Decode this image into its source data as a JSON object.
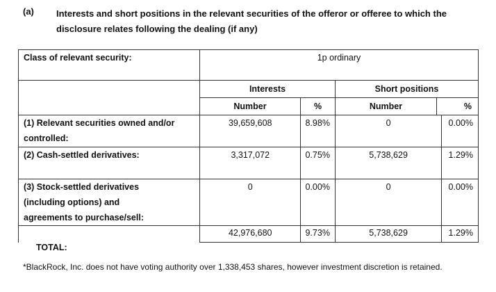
{
  "heading": {
    "label": "(a)",
    "text": "Interests and short positions in the relevant securities of the offeror or offeree to which the disclosure relates following the dealing (if any)"
  },
  "table": {
    "class_label": "Class of relevant security:",
    "class_value": "1p ordinary",
    "interests_header": "Interests",
    "short_header": "Short positions",
    "number_header": "Number",
    "percent_header": "%",
    "rows": [
      {
        "label_line1": "(1) Relevant securities owned and/or",
        "label_line2": "controlled:",
        "label_line3": "",
        "interest_number": "39,659,608",
        "interest_pct": "8.98%",
        "short_number": "0",
        "short_pct": "0.00%"
      },
      {
        "label_line1": "(2) Cash-settled derivatives:",
        "label_line2": "",
        "label_line3": "",
        "interest_number": "3,317,072",
        "interest_pct": "0.75%",
        "short_number": "5,738,629",
        "short_pct": "1.29%"
      },
      {
        "label_line1": "(3) Stock-settled derivatives",
        "label_line2": "(including options) and",
        "label_line3": "agreements to purchase/sell:",
        "interest_number": "0",
        "interest_pct": "0.00%",
        "short_number": "0",
        "short_pct": "0.00%"
      }
    ],
    "total": {
      "label": "TOTAL:",
      "interest_number": "42,976,680",
      "interest_pct": "9.73%",
      "short_number": "5,738,629",
      "short_pct": "1.29%"
    }
  },
  "footnote": "*BlackRock, Inc. does not have voting authority over 1,338,453 shares, however investment discretion is retained."
}
